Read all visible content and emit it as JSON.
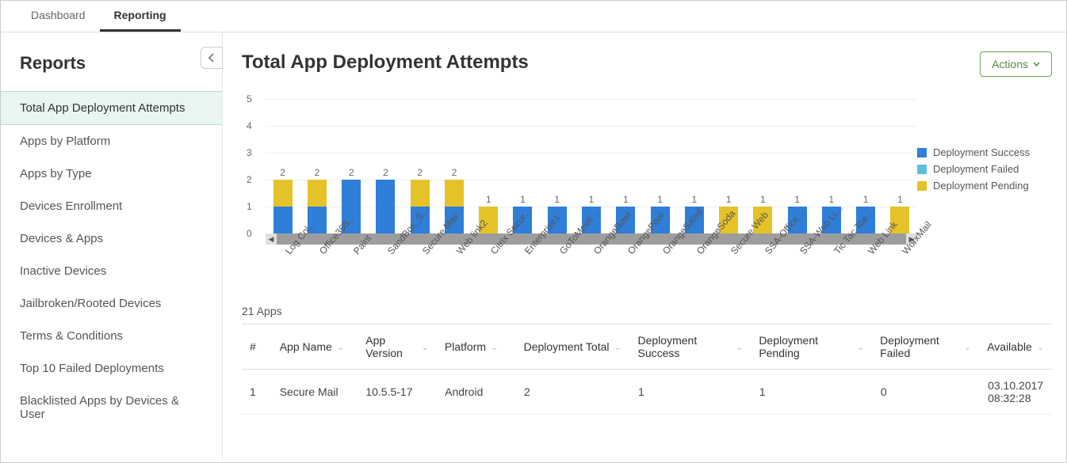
{
  "tabs": [
    {
      "label": "Dashboard",
      "active": false
    },
    {
      "label": "Reporting",
      "active": true
    }
  ],
  "sidebar": {
    "title": "Reports",
    "items": [
      {
        "label": "Total App Deployment Attempts",
        "selected": true
      },
      {
        "label": "Apps by Platform",
        "selected": false
      },
      {
        "label": "Apps by Type",
        "selected": false
      },
      {
        "label": "Devices Enrollment",
        "selected": false
      },
      {
        "label": "Devices & Apps",
        "selected": false
      },
      {
        "label": "Inactive Devices",
        "selected": false
      },
      {
        "label": "Jailbroken/Rooted Devices",
        "selected": false
      },
      {
        "label": "Terms & Conditions",
        "selected": false
      },
      {
        "label": "Top 10 Failed Deployments",
        "selected": false
      },
      {
        "label": "Blacklisted Apps by Devices & User",
        "selected": false
      }
    ]
  },
  "page_title": "Total App Deployment Attempts",
  "actions_label": "Actions",
  "chart": {
    "type": "stacked-bar",
    "ylim": [
      0,
      5
    ],
    "ytick_step": 1,
    "grid_color": "#eeeeee",
    "label_fontsize": 12,
    "series": [
      {
        "name": "Deployment Success",
        "color": "#2f7ed8"
      },
      {
        "name": "Deployment Failed",
        "color": "#5bc0de"
      },
      {
        "name": "Deployment Pending",
        "color": "#e6c229"
      }
    ],
    "categories": [
      "Log Col…",
      "Office365…",
      "Paint",
      "SandBox_S…",
      "Secure Mail",
      "Web link2",
      "Citrix Secur…",
      "Enterprise1",
      "GoToMeeti…",
      "OrangeBowl",
      "OrangePeel",
      "OrangeSalad",
      "OrangeSoda",
      "Secure Web",
      "SSA-Office…",
      "SSA-Web Li…",
      "Tic Tac Toe…",
      "Web Link",
      "WorxMail"
    ],
    "stacks": [
      {
        "success": 1,
        "failed": 0,
        "pending": 1,
        "total": 2
      },
      {
        "success": 1,
        "failed": 0,
        "pending": 1,
        "total": 2
      },
      {
        "success": 2,
        "failed": 0,
        "pending": 0,
        "total": 2
      },
      {
        "success": 2,
        "failed": 0,
        "pending": 0,
        "total": 2
      },
      {
        "success": 1,
        "failed": 0,
        "pending": 1,
        "total": 2
      },
      {
        "success": 1,
        "failed": 0,
        "pending": 1,
        "total": 2
      },
      {
        "success": 0,
        "failed": 0,
        "pending": 1,
        "total": 1
      },
      {
        "success": 1,
        "failed": 0,
        "pending": 0,
        "total": 1
      },
      {
        "success": 1,
        "failed": 0,
        "pending": 0,
        "total": 1
      },
      {
        "success": 1,
        "failed": 0,
        "pending": 0,
        "total": 1
      },
      {
        "success": 1,
        "failed": 0,
        "pending": 0,
        "total": 1
      },
      {
        "success": 1,
        "failed": 0,
        "pending": 0,
        "total": 1
      },
      {
        "success": 1,
        "failed": 0,
        "pending": 0,
        "total": 1
      },
      {
        "success": 0,
        "failed": 0,
        "pending": 1,
        "total": 1
      },
      {
        "success": 0,
        "failed": 0,
        "pending": 1,
        "total": 1
      },
      {
        "success": 1,
        "failed": 0,
        "pending": 0,
        "total": 1
      },
      {
        "success": 1,
        "failed": 0,
        "pending": 0,
        "total": 1
      },
      {
        "success": 1,
        "failed": 0,
        "pending": 0,
        "total": 1
      },
      {
        "success": 0,
        "failed": 0,
        "pending": 1,
        "total": 1
      }
    ]
  },
  "count_text": "21 Apps",
  "table": {
    "columns": [
      "#",
      "App Name",
      "App Version",
      "Platform",
      "Deployment Total",
      "Deployment Success",
      "Deployment Pending",
      "Deployment Failed",
      "Available"
    ],
    "rows": [
      {
        "n": "1",
        "name": "Secure Mail",
        "ver": "10.5.5-17",
        "platform": "Android",
        "total": "2",
        "success": "1",
        "pending": "1",
        "failed": "0",
        "avail": "03.10.2017 08:32:28"
      }
    ]
  }
}
